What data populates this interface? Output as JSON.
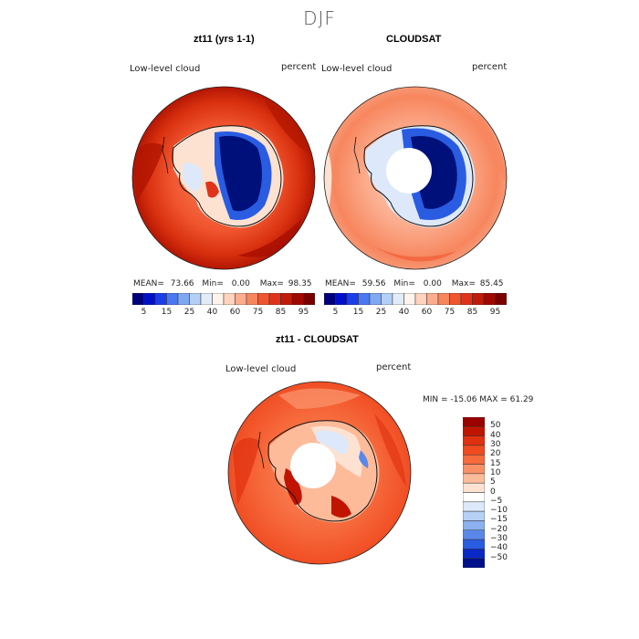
{
  "figure_title": "DJF",
  "panels": [
    {
      "title": "zt11 (yrs 1-1)",
      "variable": "Low-level cloud",
      "units": "percent",
      "stats": {
        "mean_label": "MEAN=",
        "mean": "73.66",
        "min_label": "Min=",
        "min": "0.00",
        "max_label": "Max=",
        "max": "98.35"
      }
    },
    {
      "title": "CLOUDSAT",
      "variable": "Low-level cloud",
      "units": "percent",
      "stats": {
        "mean_label": "MEAN=",
        "mean": "59.56",
        "min_label": "Min=",
        "min": "0.00",
        "max_label": "Max=",
        "max": "85.45"
      }
    },
    {
      "title": "zt11 - CLOUDSAT",
      "variable": "Low-level cloud",
      "units": "percent",
      "stats_line": "MIN = -15.06 MAX =  61.29"
    }
  ],
  "colorbar_abs": {
    "labels": [
      "5",
      "15",
      "25",
      "40",
      "60",
      "75",
      "85",
      "95"
    ],
    "colors": [
      "#00007a",
      "#0010c8",
      "#1c3ee8",
      "#4a78f0",
      "#7ea8f2",
      "#b4cff5",
      "#e2ecf8",
      "#fff4ec",
      "#ffd3bd",
      "#fbad8e",
      "#f7865e",
      "#f0552f",
      "#e0341a",
      "#c01c0a",
      "#a00800",
      "#7a0000"
    ]
  },
  "colorbar_diff": {
    "labels": [
      "50",
      "40",
      "30",
      "20",
      "15",
      "10",
      "5",
      "0",
      "−5",
      "−10",
      "−15",
      "−20",
      "−30",
      "−40",
      "−50"
    ],
    "colors": [
      "#9a0000",
      "#c01400",
      "#e03010",
      "#f04a20",
      "#f66a3c",
      "#fa9068",
      "#fdbb9a",
      "#fde2d2",
      "#ffffff",
      "#dde9fb",
      "#b6d0f6",
      "#8cb0f0",
      "#5a88ea",
      "#2a5ce2",
      "#0a28c8",
      "#00108a"
    ]
  },
  "chart_data": [
    {
      "type": "heatmap",
      "title": "zt11 (yrs 1-1)",
      "variable": "Low-level cloud",
      "units": "percent",
      "mean": 73.66,
      "min": 0.0,
      "max": 98.35,
      "colorbar_ticks": [
        5,
        15,
        25,
        40,
        60,
        75,
        85,
        95
      ]
    },
    {
      "type": "heatmap",
      "title": "CLOUDSAT",
      "variable": "Low-level cloud",
      "units": "percent",
      "mean": 59.56,
      "min": 0.0,
      "max": 85.45,
      "colorbar_ticks": [
        5,
        15,
        25,
        40,
        60,
        75,
        85,
        95
      ]
    },
    {
      "type": "heatmap",
      "title": "zt11 - CLOUDSAT",
      "variable": "Low-level cloud",
      "units": "percent",
      "min": -15.06,
      "max": 61.29,
      "colorbar_ticks": [
        50,
        40,
        30,
        20,
        15,
        10,
        5,
        0,
        -5,
        -10,
        -15,
        -20,
        -30,
        -40,
        -50
      ]
    }
  ]
}
